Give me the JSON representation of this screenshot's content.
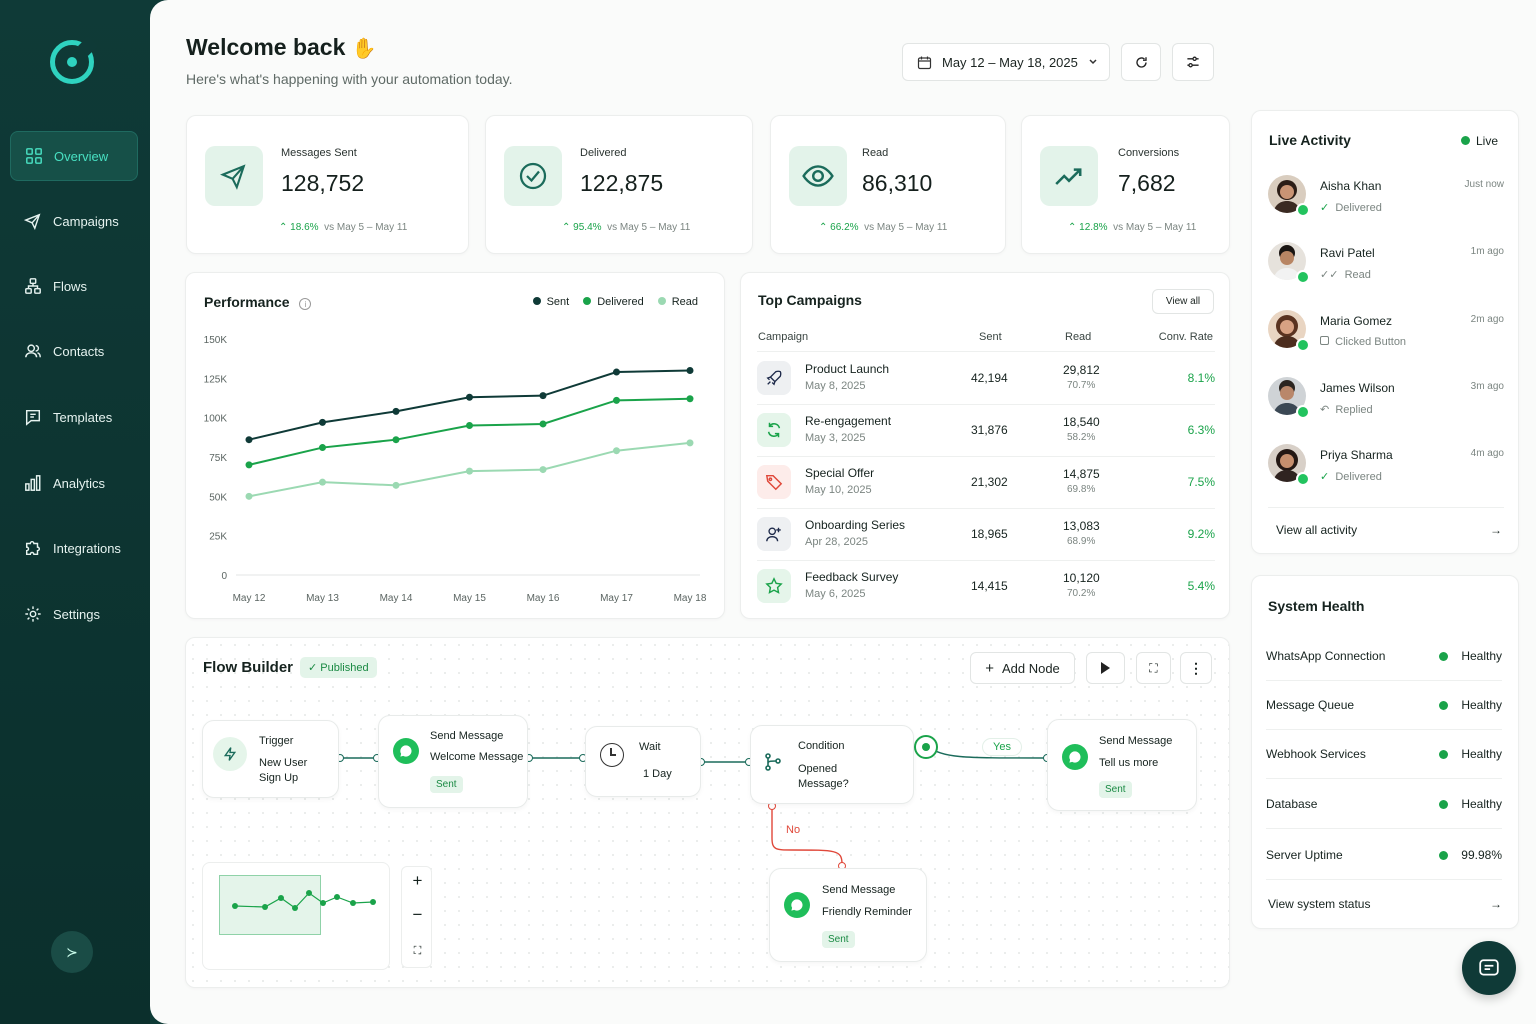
{
  "sidebar": {
    "items": [
      {
        "label": "Overview",
        "icon": "grid-icon"
      },
      {
        "label": "Campaigns",
        "icon": "send-icon"
      },
      {
        "label": "Flows",
        "icon": "flows-icon"
      },
      {
        "label": "Contacts",
        "icon": "contacts-icon"
      },
      {
        "label": "Templates",
        "icon": "templates-icon"
      },
      {
        "label": "Analytics",
        "icon": "analytics-icon"
      },
      {
        "label": "Integrations",
        "icon": "puzzle-icon"
      },
      {
        "label": "Settings",
        "icon": "gear-icon"
      }
    ]
  },
  "header": {
    "title": "Welcome back",
    "subtitle": "Here's what's happening with your automation today.",
    "date_range": "May 12 – May 18, 2025"
  },
  "stats": [
    {
      "label": "Messages Sent",
      "value": "128,752",
      "change": "18.6%",
      "compare": "vs May 5 – May 11"
    },
    {
      "label": "Delivered",
      "value": "122,875",
      "change": "95.4%",
      "compare": "vs May 5 – May 11"
    },
    {
      "label": "Read",
      "value": "86,310",
      "change": "66.2%",
      "compare": "vs May 5 – May 11"
    },
    {
      "label": "Conversions",
      "value": "7,682",
      "change": "12.8%",
      "compare": "vs May 5 – May 11"
    }
  ],
  "performance": {
    "title": "Performance"
  },
  "chart_data": {
    "type": "line",
    "x": [
      "May 12",
      "May 13",
      "May 14",
      "May 15",
      "May 16",
      "May 17",
      "May 18"
    ],
    "yticks": [
      "150K",
      "125K",
      "100K",
      "75K",
      "50K",
      "25K",
      "0"
    ],
    "ylim": [
      0,
      150000
    ],
    "legend_position": "top-right",
    "series": [
      {
        "name": "Sent",
        "color": "#0f3a37",
        "values": [
          86000,
          97000,
          104000,
          113000,
          114000,
          129000,
          130000
        ]
      },
      {
        "name": "Delivered",
        "color": "#1aa34a",
        "values": [
          70000,
          81000,
          86000,
          95000,
          96000,
          111000,
          112000
        ]
      },
      {
        "name": "Read",
        "color": "#9bd9b2",
        "values": [
          50000,
          59000,
          57000,
          66000,
          67000,
          79000,
          84000
        ]
      }
    ]
  },
  "campaigns": {
    "title": "Top Campaigns",
    "view_all": "View all",
    "headers": [
      "Campaign",
      "Sent",
      "Read",
      "Conv. Rate"
    ],
    "rows": [
      {
        "name": "Product Launch",
        "date": "May 8, 2025",
        "sent": "42,194",
        "read": "29,812",
        "read_pct": "70.7%",
        "conv": "8.1%",
        "icon": "rocket-icon"
      },
      {
        "name": "Re-engagement",
        "date": "May 3, 2025",
        "sent": "31,876",
        "read": "18,540",
        "read_pct": "58.2%",
        "conv": "6.3%",
        "icon": "refresh-icon"
      },
      {
        "name": "Special Offer",
        "date": "May 10, 2025",
        "sent": "21,302",
        "read": "14,875",
        "read_pct": "69.8%",
        "conv": "7.5%",
        "icon": "tag-icon"
      },
      {
        "name": "Onboarding Series",
        "date": "Apr 28, 2025",
        "sent": "18,965",
        "read": "13,083",
        "read_pct": "68.9%",
        "conv": "9.2%",
        "icon": "user-plus-icon"
      },
      {
        "name": "Feedback Survey",
        "date": "May 6, 2025",
        "sent": "14,415",
        "read": "10,120",
        "read_pct": "70.2%",
        "conv": "5.4%",
        "icon": "star-icon"
      }
    ]
  },
  "live": {
    "title": "Live Activity",
    "status": "Live",
    "view_all": "View all activity",
    "items": [
      {
        "name": "Aisha Khan",
        "status": "Delivered",
        "time": "Just now"
      },
      {
        "name": "Ravi Patel",
        "status": "Read",
        "time": "1m ago"
      },
      {
        "name": "Maria Gomez",
        "status": "Clicked Button",
        "time": "2m ago"
      },
      {
        "name": "James Wilson",
        "status": "Replied",
        "time": "3m ago"
      },
      {
        "name": "Priya Sharma",
        "status": "Delivered",
        "time": "4m ago"
      }
    ]
  },
  "health": {
    "title": "System Health",
    "view_status": "View system status",
    "items": [
      {
        "label": "WhatsApp Connection",
        "value": "Healthy"
      },
      {
        "label": "Message Queue",
        "value": "Healthy"
      },
      {
        "label": "Webhook Services",
        "value": "Healthy"
      },
      {
        "label": "Database",
        "value": "Healthy"
      },
      {
        "label": "Server Uptime",
        "value": "99.98%"
      }
    ]
  },
  "flow": {
    "title": "Flow Builder",
    "status": "Published",
    "add_node": "Add Node",
    "nodes": {
      "trigger": {
        "title": "Trigger",
        "line1": "New User",
        "line2": "Sign Up"
      },
      "send1": {
        "title": "Send Message",
        "text": "Welcome Message",
        "badge": "Sent"
      },
      "wait": {
        "title": "Wait",
        "text": "1 Day"
      },
      "condition": {
        "title": "Condition",
        "line1": "Opened",
        "line2": "Message?"
      },
      "send2": {
        "title": "Send Message",
        "text": "Tell us more",
        "badge": "Sent"
      },
      "send3": {
        "title": "Send Message",
        "text": "Friendly Reminder",
        "badge": "Sent"
      }
    },
    "yes": "Yes",
    "no": "No"
  },
  "colors": {
    "accent": "#1aa34a",
    "sidebar": "#0f3a37",
    "teal": "#2fd3c0",
    "no": "#e0483a"
  }
}
